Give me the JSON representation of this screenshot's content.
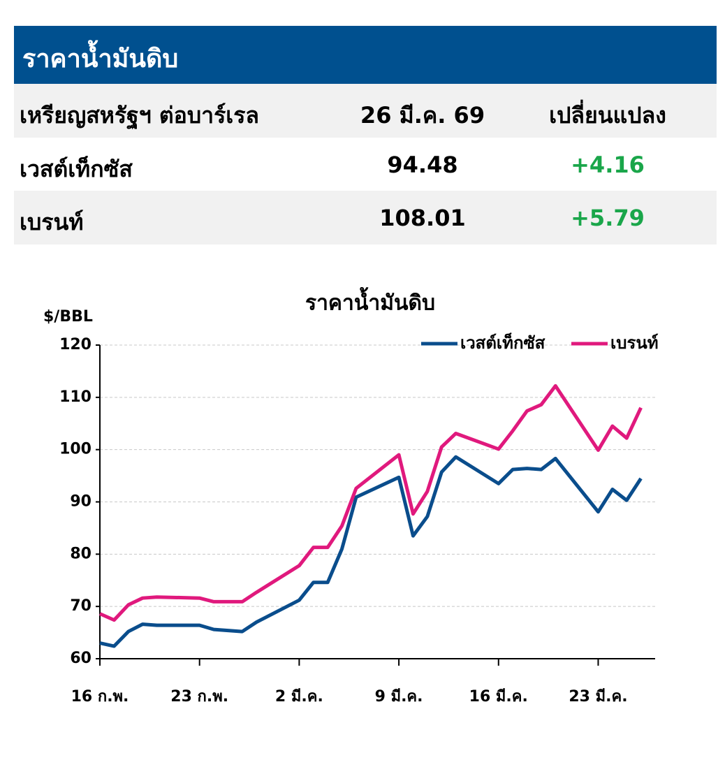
{
  "header": {
    "title": "ราคาน้ำมันดิบ"
  },
  "table": {
    "columns": [
      "เหรียญสหรัฐฯ ต่อบาร์เรล",
      "26 มี.ค. 69",
      "เปลี่ยนแปลง"
    ],
    "rows": [
      [
        "เวสต์เท็กซัส",
        "94.48",
        "+4.16"
      ],
      [
        "เบรนท์",
        "108.01",
        "+5.79"
      ]
    ]
  },
  "chart_data": {
    "type": "line",
    "title": "ราคาน้ำมันดิบ",
    "y_label": "$/BBL",
    "x": [
      0,
      1,
      2,
      3,
      4,
      7,
      8,
      9,
      10,
      11,
      14,
      15,
      16,
      17,
      18,
      21,
      22,
      23,
      24,
      25,
      28,
      29,
      30,
      31,
      32,
      35,
      36,
      37,
      38
    ],
    "series": [
      {
        "name": "เวสต์เท็กซัส",
        "color": "#0a4d8c",
        "values": [
          63,
          62.4,
          65.2,
          66.6,
          66.4,
          66.4,
          65.6,
          65.4,
          65.2,
          67,
          71.2,
          74.6,
          74.6,
          81,
          90.9,
          94.7,
          83.5,
          87.2,
          95.7,
          98.6,
          93.5,
          96.2,
          96.4,
          96.2,
          98.3,
          88.1,
          92.4,
          90.3,
          94.48
        ]
      },
      {
        "name": "เบรนท์",
        "color": "#e0197d",
        "values": [
          68.6,
          67.4,
          70.3,
          71.6,
          71.8,
          71.6,
          70.9,
          70.9,
          70.9,
          72.7,
          77.8,
          81.3,
          81.3,
          85.4,
          92.6,
          99,
          87.7,
          92,
          100.5,
          103.1,
          100.1,
          103.6,
          107.4,
          108.6,
          112.2,
          99.9,
          104.5,
          102.2,
          108.01
        ]
      }
    ],
    "xlim": [
      0,
      39
    ],
    "xticks": [
      {
        "value": 0,
        "label": "16 ก.พ."
      },
      {
        "value": 7,
        "label": "23 ก.พ."
      },
      {
        "value": 14,
        "label": "2 มี.ค."
      },
      {
        "value": 21,
        "label": "9 มี.ค."
      },
      {
        "value": 28,
        "label": "16 มี.ค."
      },
      {
        "value": 35,
        "label": "23 มี.ค."
      }
    ],
    "ylim": [
      60,
      120
    ],
    "yticks": [
      60,
      70,
      80,
      90,
      100,
      110,
      120
    ],
    "grid": true,
    "legend": "top-right"
  }
}
